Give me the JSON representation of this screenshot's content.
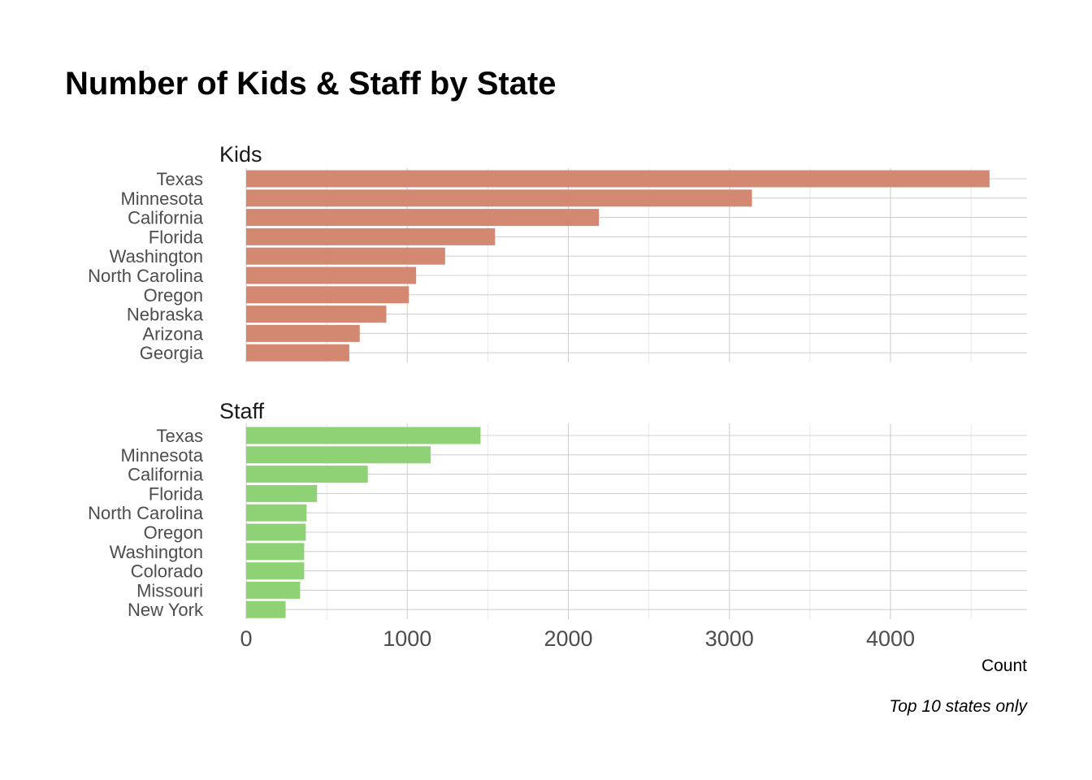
{
  "chart_data": {
    "type": "bar",
    "orientation": "horizontal",
    "title": "Number of Kids & Staff by State",
    "xlabel": "Count",
    "caption": "Top 10 states only",
    "xlim": [
      0,
      4850
    ],
    "x_ticks": [
      0,
      1000,
      2000,
      3000,
      4000
    ],
    "grid": true,
    "panels": [
      {
        "name": "Kids",
        "color": "#d38872",
        "categories": [
          "Texas",
          "Minnesota",
          "California",
          "Florida",
          "Washington",
          "North Carolina",
          "Oregon",
          "Nebraska",
          "Arizona",
          "Georgia"
        ],
        "values": [
          4615,
          3140,
          2190,
          1545,
          1235,
          1055,
          1010,
          870,
          705,
          640
        ]
      },
      {
        "name": "Staff",
        "color": "#8fd175",
        "categories": [
          "Texas",
          "Minnesota",
          "California",
          "Florida",
          "North Carolina",
          "Oregon",
          "Washington",
          "Colorado",
          "Missouri",
          "New York"
        ],
        "values": [
          1455,
          1145,
          755,
          440,
          375,
          370,
          360,
          360,
          335,
          245
        ]
      }
    ]
  }
}
